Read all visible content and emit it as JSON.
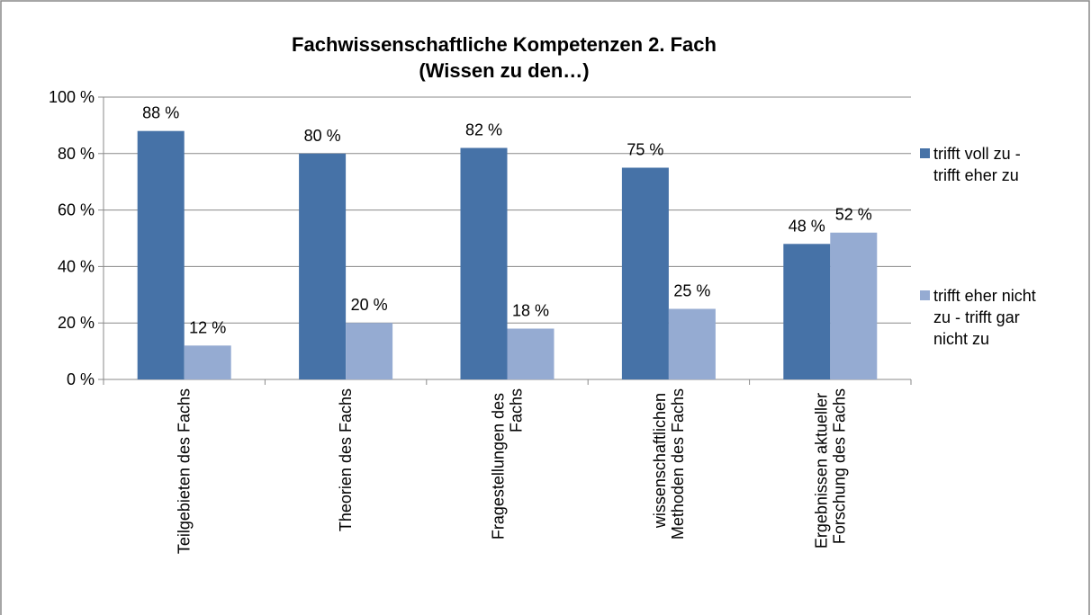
{
  "chart_data": {
    "type": "bar",
    "title": [
      "Fachwissenschaftliche Kompetenzen 2. Fach",
      "(Wissen zu den…)"
    ],
    "categories": [
      "Teilgebieten des Fachs",
      "Theorien des Fachs",
      "Fragestellungen des Fachs",
      "wissenschaftlichen Methoden des Fachs",
      "Ergebnissen aktueller Forschung des Fachs"
    ],
    "series": [
      {
        "name": "trifft voll zu - trifft eher zu",
        "color": "#4672a7",
        "values": [
          88,
          80,
          82,
          75,
          48
        ],
        "value_labels": [
          "88 %",
          "80 %",
          "82 %",
          "75 %",
          "48 %"
        ]
      },
      {
        "name": "trifft eher nicht zu - trifft gar nicht zu",
        "color": "#95abd2",
        "values": [
          12,
          20,
          18,
          25,
          52
        ],
        "value_labels": [
          "12 %",
          "20 %",
          "18 %",
          "25 %",
          "52 %"
        ]
      }
    ],
    "ylim": [
      0,
      100
    ],
    "yticks": [
      {
        "value": 0,
        "label": "0 %"
      },
      {
        "value": 20,
        "label": "20 %"
      },
      {
        "value": 40,
        "label": "40 %"
      },
      {
        "value": 60,
        "label": "60 %"
      },
      {
        "value": 80,
        "label": "80 %"
      },
      {
        "value": 100,
        "label": "100 %"
      }
    ],
    "grid": true,
    "legend": "right"
  }
}
